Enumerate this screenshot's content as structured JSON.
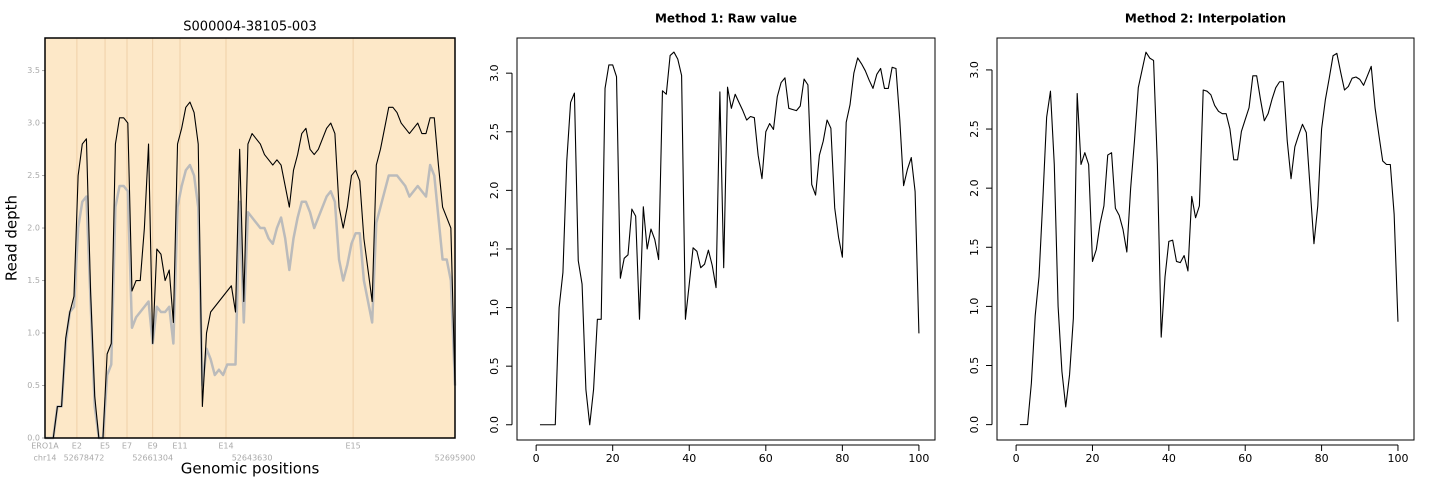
{
  "chart_data": [
    {
      "type": "line",
      "title": "S000004-38105-003",
      "ylabel": "Read depth",
      "xlabel": "Genomic positions",
      "background": "#fde8c8",
      "xlim": [
        0,
        99
      ],
      "ylim": [
        0,
        3.81
      ],
      "yticks": [
        {
          "value": 0,
          "label": "0.0"
        },
        {
          "value": 0.5,
          "label": "0.5"
        },
        {
          "value": 1,
          "label": "1.0"
        },
        {
          "value": 1.5,
          "label": "1.5"
        },
        {
          "value": 2,
          "label": "2.0"
        },
        {
          "value": 2.5,
          "label": "2.5"
        },
        {
          "value": 3,
          "label": "3.0"
        },
        {
          "value": 3.5,
          "label": "3.5"
        }
      ],
      "xticks": [
        {
          "value": 0,
          "label": "chr14"
        },
        {
          "value": 9.4,
          "label": "52678472"
        },
        {
          "value": 26,
          "label": "52661304"
        },
        {
          "value": 50,
          "label": "52643630"
        },
        {
          "value": 99,
          "label": "52695900"
        }
      ],
      "annotations": [
        {
          "value": 0,
          "label": "ERO1A"
        },
        {
          "value": 7.7,
          "label": "E2"
        },
        {
          "value": 14.5,
          "label": "E5"
        },
        {
          "value": 19.8,
          "label": "E7"
        },
        {
          "value": 26,
          "label": "E9"
        },
        {
          "value": 32.6,
          "label": "E11"
        },
        {
          "value": 43.7,
          "label": "E14"
        },
        {
          "value": 74.4,
          "label": "E15"
        }
      ],
      "series": [
        {
          "color": "#bbbbbb",
          "values": [
            0,
            0,
            0,
            0.3,
            0.3,
            0.9,
            1.2,
            1.25,
            2.0,
            2.25,
            2.3,
            1.3,
            0.3,
            0,
            0,
            0.6,
            0.7,
            2.2,
            2.4,
            2.4,
            2.35,
            1.05,
            1.15,
            1.2,
            1.25,
            1.3,
            0.9,
            1.25,
            1.2,
            1.2,
            1.25,
            0.9,
            2.2,
            2.4,
            2.55,
            2.6,
            2.5,
            2.2,
            0.5,
            0.85,
            0.75,
            0.6,
            0.65,
            0.6,
            0.7,
            0.7,
            0.7,
            2.25,
            1.1,
            2.15,
            2.1,
            2.05,
            2.0,
            2.0,
            1.9,
            1.85,
            2.0,
            2.1,
            1.9,
            1.6,
            1.9,
            2.1,
            2.25,
            2.25,
            2.15,
            2.0,
            2.1,
            2.2,
            2.3,
            2.35,
            2.25,
            1.7,
            1.5,
            1.65,
            1.85,
            1.95,
            1.95,
            1.5,
            1.3,
            1.1,
            2.05,
            2.2,
            2.35,
            2.5,
            2.5,
            2.5,
            2.45,
            2.4,
            2.3,
            2.35,
            2.4,
            2.35,
            2.3,
            2.6,
            2.5,
            2.1,
            1.7,
            1.7,
            1.5,
            0.5
          ]
        },
        {
          "color": "#000000",
          "values": [
            0,
            0,
            0,
            0.3,
            0.3,
            0.95,
            1.2,
            1.35,
            2.5,
            2.8,
            2.85,
            1.4,
            0.4,
            0,
            0,
            0.8,
            0.9,
            2.8,
            3.05,
            3.05,
            3.0,
            1.4,
            1.5,
            1.5,
            2.0,
            2.8,
            0.9,
            1.8,
            1.75,
            1.5,
            1.6,
            1.1,
            2.8,
            2.95,
            3.15,
            3.2,
            3.1,
            2.8,
            0.3,
            1.0,
            1.2,
            1.25,
            1.3,
            1.35,
            1.4,
            1.45,
            1.2,
            2.75,
            1.3,
            2.8,
            2.9,
            2.85,
            2.8,
            2.7,
            2.65,
            2.6,
            2.65,
            2.6,
            2.4,
            2.2,
            2.55,
            2.7,
            2.9,
            2.95,
            2.75,
            2.7,
            2.75,
            2.85,
            2.95,
            3.0,
            2.9,
            2.2,
            2.0,
            2.2,
            2.5,
            2.55,
            2.45,
            1.9,
            1.6,
            1.3,
            2.6,
            2.75,
            2.95,
            3.15,
            3.15,
            3.1,
            3.0,
            2.95,
            2.9,
            2.95,
            3.0,
            2.9,
            2.9,
            3.05,
            3.05,
            2.6,
            2.2,
            2.1,
            2.0,
            0.5
          ]
        }
      ]
    },
    {
      "type": "line",
      "title": "Method 1: Raw value",
      "xlim": [
        -5,
        104.2
      ],
      "ylim": [
        -0.13,
        3.3
      ],
      "xticks": [
        0,
        20,
        40,
        60,
        80,
        100
      ],
      "yticks": [
        {
          "value": 0,
          "label": "0.0"
        },
        {
          "value": 0.5,
          "label": "0.5"
        },
        {
          "value": 1,
          "label": "1.0"
        },
        {
          "value": 1.5,
          "label": "1.5"
        },
        {
          "value": 2,
          "label": "2.0"
        },
        {
          "value": 2.5,
          "label": "2.5"
        },
        {
          "value": 3,
          "label": "3.0"
        }
      ],
      "x": [
        1,
        2,
        3,
        4,
        5,
        6,
        7,
        8,
        9,
        10,
        11,
        12,
        13,
        14,
        15,
        16,
        17,
        18,
        19,
        20,
        21,
        22,
        23,
        24,
        25,
        26,
        27,
        28,
        29,
        30,
        31,
        32,
        33,
        34,
        35,
        36,
        37,
        38,
        39,
        40,
        41,
        42,
        43,
        44,
        45,
        46,
        47,
        48,
        49,
        50,
        51,
        52,
        53,
        54,
        55,
        56,
        57,
        58,
        59,
        60,
        61,
        62,
        63,
        64,
        65,
        66,
        67,
        68,
        69,
        70,
        71,
        72,
        73,
        74,
        75,
        76,
        77,
        78,
        79,
        80,
        81,
        82,
        83,
        84,
        85,
        86,
        87,
        88,
        89,
        90,
        91,
        92,
        93,
        94,
        95,
        96,
        97,
        98,
        99,
        100
      ],
      "series": [
        {
          "color": "#000000",
          "values": [
            0,
            0,
            0,
            0,
            0,
            1.0,
            1.3,
            2.25,
            2.75,
            2.83,
            1.4,
            1.2,
            0.3,
            0,
            0.3,
            0.9,
            0.9,
            2.87,
            3.07,
            3.07,
            2.97,
            1.25,
            1.42,
            1.45,
            1.84,
            1.78,
            0.9,
            1.86,
            1.5,
            1.67,
            1.58,
            1.41,
            2.85,
            2.82,
            3.15,
            3.18,
            3.12,
            2.98,
            0.9,
            1.2,
            1.51,
            1.48,
            1.34,
            1.37,
            1.49,
            1.36,
            1.17,
            2.84,
            1.34,
            2.88,
            2.7,
            2.82,
            2.75,
            2.68,
            2.6,
            2.63,
            2.62,
            2.3,
            2.1,
            2.5,
            2.57,
            2.52,
            2.8,
            2.92,
            2.96,
            2.7,
            2.69,
            2.68,
            2.72,
            2.95,
            2.9,
            2.05,
            1.96,
            2.3,
            2.42,
            2.6,
            2.53,
            1.85,
            1.6,
            1.43,
            2.58,
            2.73,
            3.0,
            3.13,
            3.08,
            3.02,
            2.94,
            2.87,
            2.99,
            3.04,
            2.87,
            2.87,
            3.05,
            3.04,
            2.6,
            2.04,
            2.18,
            2.28,
            1.99,
            0.78
          ]
        }
      ]
    },
    {
      "type": "line",
      "title": "Method 2: Interpolation",
      "xlim": [
        -5,
        104.2
      ],
      "ylim": [
        -0.13,
        3.27
      ],
      "xticks": [
        0,
        20,
        40,
        60,
        80,
        100
      ],
      "yticks": [
        {
          "value": 0,
          "label": "0.0"
        },
        {
          "value": 0.5,
          "label": "0.5"
        },
        {
          "value": 1,
          "label": "1.0"
        },
        {
          "value": 1.5,
          "label": "1.5"
        },
        {
          "value": 2,
          "label": "2.0"
        },
        {
          "value": 2.5,
          "label": "2.5"
        },
        {
          "value": 3,
          "label": "3.0"
        }
      ],
      "x": [
        1,
        2,
        3,
        4,
        5,
        6,
        7,
        8,
        9,
        10,
        11,
        12,
        13,
        14,
        15,
        16,
        17,
        18,
        19,
        20,
        21,
        22,
        23,
        24,
        25,
        26,
        27,
        28,
        29,
        30,
        31,
        32,
        33,
        34,
        35,
        36,
        37,
        38,
        39,
        40,
        41,
        42,
        43,
        44,
        45,
        46,
        47,
        48,
        49,
        50,
        51,
        52,
        53,
        54,
        55,
        56,
        57,
        58,
        59,
        60,
        61,
        62,
        63,
        64,
        65,
        66,
        67,
        68,
        69,
        70,
        71,
        72,
        73,
        74,
        75,
        76,
        77,
        78,
        79,
        80,
        81,
        82,
        83,
        84,
        85,
        86,
        87,
        88,
        89,
        90,
        91,
        92,
        93,
        94,
        95,
        96,
        97,
        98,
        99,
        100
      ],
      "series": [
        {
          "color": "#000000",
          "values": [
            0,
            0,
            0,
            0.35,
            0.92,
            1.25,
            1.9,
            2.6,
            2.82,
            2.2,
            1.0,
            0.45,
            0.15,
            0.42,
            0.9,
            2.8,
            2.2,
            2.3,
            2.2,
            1.38,
            1.48,
            1.7,
            1.85,
            2.28,
            2.3,
            1.83,
            1.77,
            1.65,
            1.46,
            2.0,
            2.4,
            2.85,
            3.0,
            3.15,
            3.1,
            3.08,
            2.2,
            0.74,
            1.25,
            1.55,
            1.56,
            1.38,
            1.37,
            1.43,
            1.3,
            1.93,
            1.75,
            1.85,
            2.83,
            2.82,
            2.79,
            2.7,
            2.65,
            2.63,
            2.63,
            2.5,
            2.24,
            2.24,
            2.48,
            2.58,
            2.68,
            2.95,
            2.95,
            2.75,
            2.57,
            2.63,
            2.75,
            2.85,
            2.9,
            2.9,
            2.4,
            2.08,
            2.35,
            2.45,
            2.54,
            2.47,
            2.0,
            1.53,
            1.85,
            2.5,
            2.75,
            2.93,
            3.12,
            3.14,
            2.98,
            2.83,
            2.86,
            2.93,
            2.94,
            2.92,
            2.87,
            2.95,
            3.03,
            2.68,
            2.45,
            2.23,
            2.2,
            2.2,
            1.78,
            0.87
          ]
        }
      ]
    }
  ]
}
